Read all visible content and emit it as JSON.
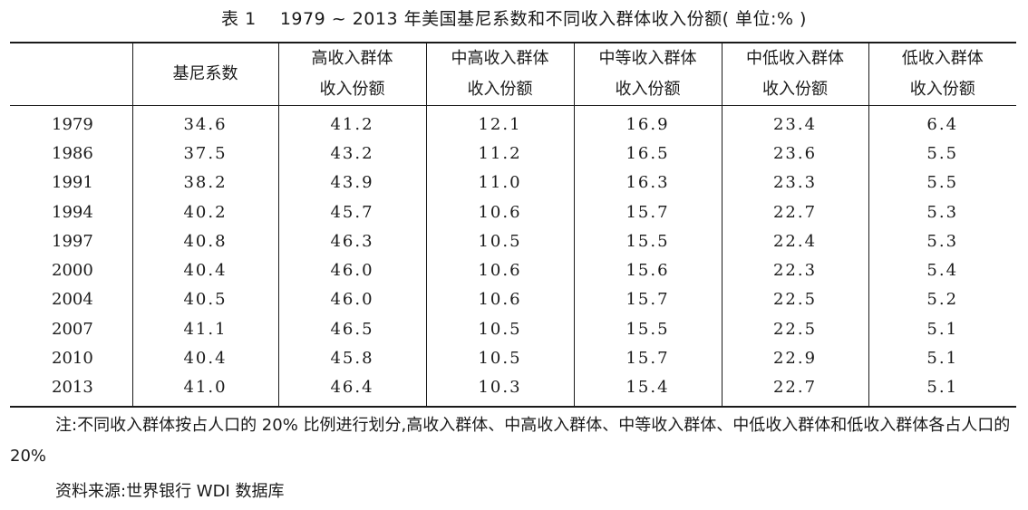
{
  "title": {
    "prefix": "表 1",
    "text": "1979 ~ 2013 年美国基尼系数和不同收入群体收入份额( 单位:% )"
  },
  "table": {
    "headers": [
      {
        "line1": "",
        "line2": ""
      },
      {
        "line1": "基尼系数",
        "line2": ""
      },
      {
        "line1": "高收入群体",
        "line2": "收入份额"
      },
      {
        "line1": "中高收入群体",
        "line2": "收入份额"
      },
      {
        "line1": "中等收入群体",
        "line2": "收入份额"
      },
      {
        "line1": "中低收入群体",
        "line2": "收入份额"
      },
      {
        "line1": "低收入群体",
        "line2": "收入份额"
      }
    ],
    "rows": [
      [
        "1979",
        "34.6",
        "41.2",
        "12.1",
        "16.9",
        "23.4",
        "6.4"
      ],
      [
        "1986",
        "37.5",
        "43.2",
        "11.2",
        "16.5",
        "23.6",
        "5.5"
      ],
      [
        "1991",
        "38.2",
        "43.9",
        "11.0",
        "16.3",
        "23.3",
        "5.5"
      ],
      [
        "1994",
        "40.2",
        "45.7",
        "10.6",
        "15.7",
        "22.7",
        "5.3"
      ],
      [
        "1997",
        "40.8",
        "46.3",
        "10.5",
        "15.5",
        "22.4",
        "5.3"
      ],
      [
        "2000",
        "40.4",
        "46.0",
        "10.6",
        "15.6",
        "22.3",
        "5.4"
      ],
      [
        "2004",
        "40.5",
        "46.0",
        "10.6",
        "15.7",
        "22.5",
        "5.2"
      ],
      [
        "2007",
        "41.1",
        "46.5",
        "10.5",
        "15.5",
        "22.5",
        "5.1"
      ],
      [
        "2010",
        "40.4",
        "45.8",
        "10.5",
        "15.7",
        "22.9",
        "5.1"
      ],
      [
        "2013",
        "41.0",
        "46.4",
        "10.3",
        "15.4",
        "22.7",
        "5.1"
      ]
    ]
  },
  "note": "注:不同收入群体按占人口的 20% 比例进行划分,高收入群体、中高收入群体、中等收入群体、中低收入群体和低收入群体各占人口的 20%",
  "source": "资料来源:世界银行 WDI 数据库"
}
